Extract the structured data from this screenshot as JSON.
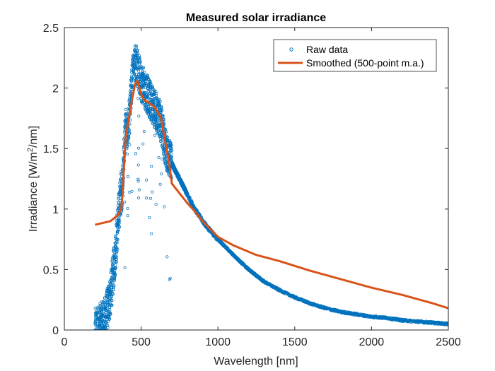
{
  "chart_data": {
    "type": "scatter",
    "title": "Measured solar irradiance",
    "xlabel": "Wavelength [nm]",
    "ylabel_parts": [
      "Irradiance [W/m",
      "2",
      "/nm]"
    ],
    "xlim": [
      0,
      2500
    ],
    "ylim": [
      0,
      2.5
    ],
    "xticks": [
      0,
      500,
      1000,
      1500,
      2000,
      2500
    ],
    "xtick_labels": [
      "0",
      "500",
      "1000",
      "1500",
      "2000",
      "2500"
    ],
    "yticks": [
      0,
      0.5,
      1,
      1.5,
      2,
      2.5
    ],
    "ytick_labels": [
      "0",
      "0.5",
      "1",
      "1.5",
      "2",
      "2.5"
    ],
    "grid": false,
    "legend_position": "top-right",
    "series": [
      {
        "name": "Raw data",
        "kind": "scatter-markers",
        "color": "#0072BD",
        "marker": "open-circle",
        "description_points": [
          [
            200,
            0.0
          ],
          [
            210,
            0.01
          ],
          [
            225,
            0.03
          ],
          [
            240,
            0.05
          ],
          [
            255,
            0.07
          ],
          [
            270,
            0.12
          ],
          [
            285,
            0.2
          ],
          [
            300,
            0.28
          ],
          [
            310,
            0.38
          ],
          [
            320,
            0.5
          ],
          [
            330,
            0.6
          ],
          [
            340,
            0.75
          ],
          [
            350,
            0.9
          ],
          [
            360,
            1.05
          ],
          [
            370,
            1.15
          ],
          [
            380,
            1.2
          ],
          [
            390,
            1.5
          ],
          [
            400,
            1.7
          ],
          [
            410,
            1.6
          ],
          [
            420,
            1.75
          ],
          [
            430,
            1.9
          ],
          [
            440,
            2.05
          ],
          [
            450,
            2.15
          ],
          [
            460,
            2.2
          ],
          [
            470,
            2.2
          ],
          [
            480,
            2.15
          ],
          [
            490,
            2.1
          ],
          [
            500,
            2.05
          ],
          [
            520,
            2.0
          ],
          [
            540,
            1.95
          ],
          [
            560,
            1.9
          ],
          [
            580,
            1.85
          ],
          [
            600,
            1.8
          ],
          [
            620,
            1.75
          ],
          [
            640,
            1.65
          ],
          [
            660,
            1.5
          ],
          [
            680,
            1.42
          ],
          [
            700,
            1.38
          ],
          [
            720,
            1.32
          ],
          [
            750,
            1.25
          ],
          [
            800,
            1.12
          ],
          [
            850,
            1.0
          ],
          [
            900,
            0.9
          ],
          [
            950,
            0.82
          ],
          [
            1000,
            0.75
          ],
          [
            1100,
            0.62
          ],
          [
            1200,
            0.5
          ],
          [
            1300,
            0.4
          ],
          [
            1400,
            0.33
          ],
          [
            1500,
            0.27
          ],
          [
            1600,
            0.22
          ],
          [
            1700,
            0.18
          ],
          [
            1800,
            0.15
          ],
          [
            1900,
            0.13
          ],
          [
            2000,
            0.11
          ],
          [
            2100,
            0.1
          ],
          [
            2200,
            0.08
          ],
          [
            2300,
            0.07
          ],
          [
            2400,
            0.06
          ],
          [
            2500,
            0.05
          ]
        ]
      },
      {
        "name": "Smoothed (500-point m.a.)",
        "kind": "line",
        "color": "#D95319",
        "values_xy": [
          [
            200,
            0.87
          ],
          [
            300,
            0.9
          ],
          [
            350,
            0.95
          ],
          [
            370,
            1.0
          ],
          [
            380,
            1.15
          ],
          [
            390,
            1.4
          ],
          [
            400,
            1.6
          ],
          [
            420,
            1.75
          ],
          [
            440,
            1.9
          ],
          [
            460,
            2.03
          ],
          [
            475,
            2.06
          ],
          [
            490,
            2.0
          ],
          [
            500,
            1.95
          ],
          [
            520,
            1.9
          ],
          [
            550,
            1.88
          ],
          [
            580,
            1.85
          ],
          [
            600,
            1.82
          ],
          [
            630,
            1.75
          ],
          [
            650,
            1.6
          ],
          [
            680,
            1.4
          ],
          [
            700,
            1.21
          ],
          [
            750,
            1.13
          ],
          [
            800,
            1.05
          ],
          [
            850,
            0.98
          ],
          [
            900,
            0.9
          ],
          [
            1000,
            0.77
          ],
          [
            1100,
            0.7
          ],
          [
            1250,
            0.62
          ],
          [
            1400,
            0.57
          ],
          [
            1600,
            0.49
          ],
          [
            1800,
            0.42
          ],
          [
            2000,
            0.35
          ],
          [
            2200,
            0.29
          ],
          [
            2400,
            0.22
          ],
          [
            2500,
            0.18
          ]
        ]
      }
    ]
  }
}
